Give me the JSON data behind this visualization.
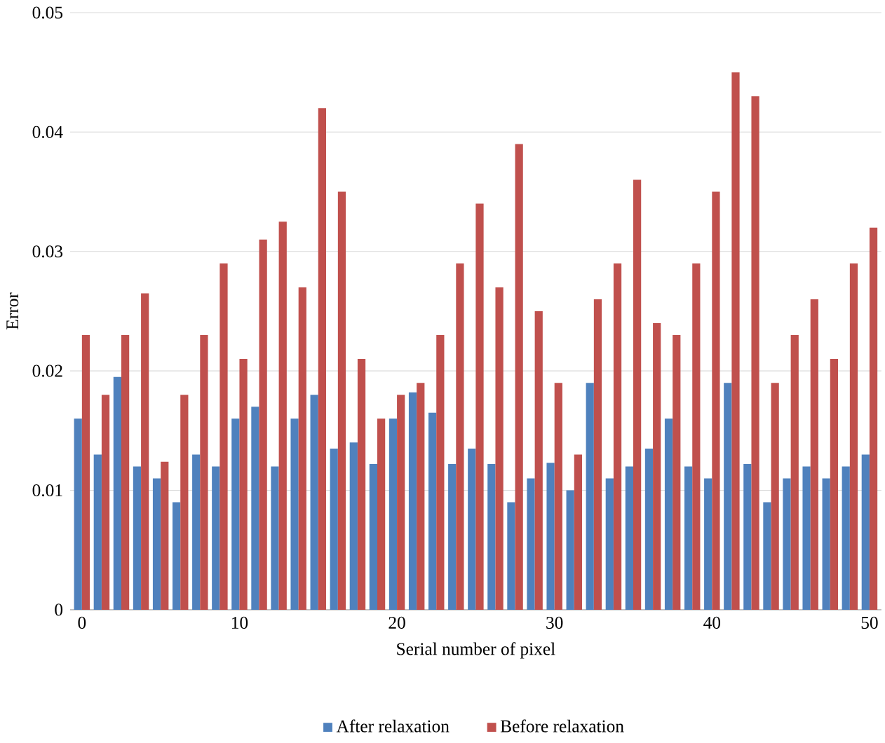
{
  "chart_data": {
    "type": "bar",
    "xlabel": "Serial number of pixel",
    "ylabel": "Error",
    "x": [
      0,
      1.25,
      2.5,
      3.75,
      5,
      6.25,
      7.5,
      8.75,
      10,
      11.25,
      12.5,
      13.75,
      15,
      16.25,
      17.5,
      18.75,
      20,
      21.25,
      22.5,
      23.75,
      25,
      26.25,
      27.5,
      28.75,
      30,
      31.25,
      32.5,
      33.75,
      35,
      36.25,
      37.5,
      38.75,
      40,
      41.25,
      42.5,
      43.75,
      45,
      46.25,
      47.5,
      48.75,
      50
    ],
    "series": [
      {
        "name": "After relaxation",
        "color": "#4f81bd",
        "values": [
          0.016,
          0.013,
          0.0195,
          0.012,
          0.011,
          0.009,
          0.013,
          0.012,
          0.016,
          0.017,
          0.012,
          0.016,
          0.018,
          0.0135,
          0.014,
          0.0122,
          0.016,
          0.0182,
          0.0165,
          0.0122,
          0.0135,
          0.0122,
          0.009,
          0.011,
          0.0123,
          0.01,
          0.019,
          0.011,
          0.012,
          0.0135,
          0.016,
          0.012,
          0.011,
          0.019,
          0.0122,
          0.009,
          0.011,
          0.012,
          0.011,
          0.012,
          0.013
        ]
      },
      {
        "name": "Before relaxation",
        "color": "#c0504d",
        "values": [
          0.023,
          0.018,
          0.023,
          0.0265,
          0.0124,
          0.018,
          0.023,
          0.029,
          0.021,
          0.031,
          0.0325,
          0.027,
          0.042,
          0.035,
          0.021,
          0.016,
          0.018,
          0.019,
          0.023,
          0.029,
          0.034,
          0.027,
          0.039,
          0.025,
          0.019,
          0.013,
          0.026,
          0.029,
          0.036,
          0.024,
          0.023,
          0.029,
          0.035,
          0.045,
          0.043,
          0.019,
          0.023,
          0.026,
          0.021,
          0.029,
          0.032
        ]
      }
    ],
    "xlim": [
      -0.75,
      50.75
    ],
    "xticks": [
      0,
      10,
      20,
      30,
      40,
      50
    ],
    "ylim": [
      0,
      0.05
    ],
    "yticks": [
      0,
      0.01,
      0.02,
      0.03,
      0.04,
      0.05
    ],
    "grid": "y",
    "legend": "bottom"
  }
}
